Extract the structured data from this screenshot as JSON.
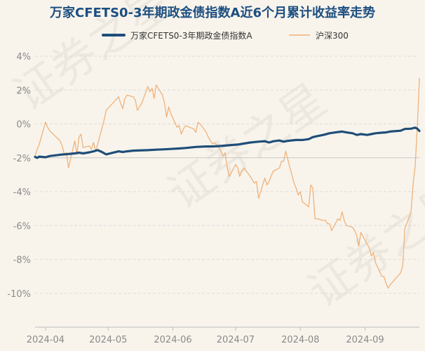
{
  "chart_data": {
    "type": "line",
    "title": "万家CFETS0-3年期政金债指数A近6个月累计收益率走势",
    "x_ticks": [
      "2024-04",
      "2024-05",
      "2024-06",
      "2024-07",
      "2024-08",
      "2024-09"
    ],
    "y_ticks": [
      "4%",
      "2%",
      "0%",
      "-2%",
      "-4%",
      "-6%",
      "-8%",
      "-10%"
    ],
    "y_tick_values": [
      4,
      2,
      0,
      -2,
      -4,
      -6,
      -8,
      -10
    ],
    "ylim": [
      -12,
      4
    ],
    "date_range": [
      "2024-03-27",
      "2024-09-27"
    ],
    "grid": "horizontal dashed",
    "legend_position": "top",
    "watermark": "证券之星",
    "series": [
      {
        "name": "万家CFETS0-3年期政金债指数A",
        "color": "#1f4e79",
        "points": [
          [
            "2024-03-27",
            -1.95
          ],
          [
            "2024-03-28",
            -2.0
          ],
          [
            "2024-03-29",
            -1.93
          ],
          [
            "2024-04-01",
            -1.97
          ],
          [
            "2024-04-03",
            -1.9
          ],
          [
            "2024-04-08",
            -1.82
          ],
          [
            "2024-04-10",
            -1.8
          ],
          [
            "2024-04-12",
            -1.78
          ],
          [
            "2024-04-15",
            -1.74
          ],
          [
            "2024-04-17",
            -1.7
          ],
          [
            "2024-04-19",
            -1.74
          ],
          [
            "2024-04-22",
            -1.68
          ],
          [
            "2024-04-24",
            -1.62
          ],
          [
            "2024-04-26",
            -1.55
          ],
          [
            "2024-04-28",
            -1.66
          ],
          [
            "2024-04-30",
            -1.8
          ],
          [
            "2024-05-06",
            -1.62
          ],
          [
            "2024-05-08",
            -1.66
          ],
          [
            "2024-05-10",
            -1.62
          ],
          [
            "2024-05-13",
            -1.58
          ],
          [
            "2024-05-15",
            -1.57
          ],
          [
            "2024-05-20",
            -1.55
          ],
          [
            "2024-05-24",
            -1.52
          ],
          [
            "2024-05-28",
            -1.5
          ],
          [
            "2024-05-31",
            -1.48
          ],
          [
            "2024-06-04",
            -1.45
          ],
          [
            "2024-06-07",
            -1.42
          ],
          [
            "2024-06-12",
            -1.36
          ],
          [
            "2024-06-17",
            -1.33
          ],
          [
            "2024-06-20",
            -1.33
          ],
          [
            "2024-06-24",
            -1.3
          ],
          [
            "2024-06-28",
            -1.26
          ],
          [
            "2024-07-02",
            -1.22
          ],
          [
            "2024-07-05",
            -1.16
          ],
          [
            "2024-07-08",
            -1.1
          ],
          [
            "2024-07-12",
            -1.05
          ],
          [
            "2024-07-15",
            -1.02
          ],
          [
            "2024-07-17",
            -1.1
          ],
          [
            "2024-07-19",
            -1.03
          ],
          [
            "2024-07-22",
            -0.98
          ],
          [
            "2024-07-24",
            -1.05
          ],
          [
            "2024-07-26",
            -1.0
          ],
          [
            "2024-07-30",
            -0.95
          ],
          [
            "2024-08-02",
            -0.95
          ],
          [
            "2024-08-05",
            -0.9
          ],
          [
            "2024-08-07",
            -0.78
          ],
          [
            "2024-08-09",
            -0.72
          ],
          [
            "2024-08-12",
            -0.65
          ],
          [
            "2024-08-15",
            -0.55
          ],
          [
            "2024-08-19",
            -0.48
          ],
          [
            "2024-08-21",
            -0.45
          ],
          [
            "2024-08-23",
            -0.5
          ],
          [
            "2024-08-26",
            -0.55
          ],
          [
            "2024-08-28",
            -0.65
          ],
          [
            "2024-08-30",
            -0.6
          ],
          [
            "2024-09-02",
            -0.65
          ],
          [
            "2024-09-04",
            -0.6
          ],
          [
            "2024-09-06",
            -0.55
          ],
          [
            "2024-09-09",
            -0.52
          ],
          [
            "2024-09-11",
            -0.5
          ],
          [
            "2024-09-13",
            -0.45
          ],
          [
            "2024-09-18",
            -0.4
          ],
          [
            "2024-09-20",
            -0.3
          ],
          [
            "2024-09-23",
            -0.28
          ],
          [
            "2024-09-24",
            -0.25
          ],
          [
            "2024-09-25",
            -0.22
          ],
          [
            "2024-09-26",
            -0.28
          ],
          [
            "2024-09-27",
            -0.42
          ]
        ]
      },
      {
        "name": "沪深300",
        "color": "#f0b27a",
        "points": [
          [
            "2024-03-27",
            -1.9
          ],
          [
            "2024-03-28",
            -1.5
          ],
          [
            "2024-03-29",
            -1.2
          ],
          [
            "2024-04-01",
            0.1
          ],
          [
            "2024-04-02",
            -0.2
          ],
          [
            "2024-04-03",
            -0.4
          ],
          [
            "2024-04-08",
            -1.0
          ],
          [
            "2024-04-09",
            -1.3
          ],
          [
            "2024-04-10",
            -1.8
          ],
          [
            "2024-04-11",
            -1.7
          ],
          [
            "2024-04-12",
            -2.6
          ],
          [
            "2024-04-15",
            -1.0
          ],
          [
            "2024-04-16",
            -1.8
          ],
          [
            "2024-04-17",
            -0.8
          ],
          [
            "2024-04-18",
            -0.6
          ],
          [
            "2024-04-19",
            -1.4
          ],
          [
            "2024-04-22",
            -1.3
          ],
          [
            "2024-04-23",
            -1.5
          ],
          [
            "2024-04-24",
            -1.1
          ],
          [
            "2024-04-25",
            -1.6
          ],
          [
            "2024-04-26",
            -1.2
          ],
          [
            "2024-04-29",
            0.2
          ],
          [
            "2024-04-30",
            0.8
          ],
          [
            "2024-05-06",
            1.6
          ],
          [
            "2024-05-07",
            1.2
          ],
          [
            "2024-05-08",
            0.9
          ],
          [
            "2024-05-09",
            1.5
          ],
          [
            "2024-05-10",
            1.7
          ],
          [
            "2024-05-13",
            1.6
          ],
          [
            "2024-05-14",
            1.4
          ],
          [
            "2024-05-15",
            0.8
          ],
          [
            "2024-05-16",
            1.0
          ],
          [
            "2024-05-17",
            1.2
          ],
          [
            "2024-05-20",
            2.2
          ],
          [
            "2024-05-21",
            1.9
          ],
          [
            "2024-05-22",
            2.1
          ],
          [
            "2024-05-23",
            1.5
          ],
          [
            "2024-05-24",
            2.3
          ],
          [
            "2024-05-27",
            1.7
          ],
          [
            "2024-05-28",
            1.2
          ],
          [
            "2024-05-29",
            0.4
          ],
          [
            "2024-05-30",
            1.0
          ],
          [
            "2024-05-31",
            0.6
          ],
          [
            "2024-06-03",
            -0.2
          ],
          [
            "2024-06-04",
            -0.1
          ],
          [
            "2024-06-05",
            -0.6
          ],
          [
            "2024-06-06",
            -0.3
          ],
          [
            "2024-06-07",
            -0.1
          ],
          [
            "2024-06-11",
            -0.3
          ],
          [
            "2024-06-12",
            -0.5
          ],
          [
            "2024-06-13",
            0.1
          ],
          [
            "2024-06-14",
            0.0
          ],
          [
            "2024-06-17",
            -0.5
          ],
          [
            "2024-06-18",
            -0.8
          ],
          [
            "2024-06-19",
            -1.0
          ],
          [
            "2024-06-20",
            -1.2
          ],
          [
            "2024-06-21",
            -1.1
          ],
          [
            "2024-06-24",
            -1.6
          ],
          [
            "2024-06-25",
            -1.9
          ],
          [
            "2024-06-26",
            -1.7
          ],
          [
            "2024-06-27",
            -2.6
          ],
          [
            "2024-06-28",
            -3.1
          ],
          [
            "2024-07-01",
            -2.4
          ],
          [
            "2024-07-02",
            -2.6
          ],
          [
            "2024-07-03",
            -3.1
          ],
          [
            "2024-07-04",
            -2.8
          ],
          [
            "2024-07-05",
            -2.6
          ],
          [
            "2024-07-08",
            -3.1
          ],
          [
            "2024-07-09",
            -3.3
          ],
          [
            "2024-07-10",
            -3.5
          ],
          [
            "2024-07-11",
            -3.4
          ],
          [
            "2024-07-12",
            -4.4
          ],
          [
            "2024-07-15",
            -3.2
          ],
          [
            "2024-07-16",
            -3.6
          ],
          [
            "2024-07-17",
            -3.4
          ],
          [
            "2024-07-18",
            -3.1
          ],
          [
            "2024-07-19",
            -2.8
          ],
          [
            "2024-07-22",
            -2.6
          ],
          [
            "2024-07-23",
            -2.2
          ],
          [
            "2024-07-24",
            -2.2
          ],
          [
            "2024-07-25",
            -1.6
          ],
          [
            "2024-07-26",
            -2.1
          ],
          [
            "2024-07-29",
            -3.5
          ],
          [
            "2024-07-30",
            -3.8
          ],
          [
            "2024-07-31",
            -4.2
          ],
          [
            "2024-08-01",
            -4.0
          ],
          [
            "2024-08-02",
            -4.6
          ],
          [
            "2024-08-05",
            -4.9
          ],
          [
            "2024-08-06",
            -3.6
          ],
          [
            "2024-08-07",
            -3.8
          ],
          [
            "2024-08-08",
            -5.6
          ],
          [
            "2024-08-09",
            -5.6
          ],
          [
            "2024-08-12",
            -5.7
          ],
          [
            "2024-08-13",
            -5.7
          ],
          [
            "2024-08-14",
            -5.9
          ],
          [
            "2024-08-15",
            -5.9
          ],
          [
            "2024-08-16",
            -6.3
          ],
          [
            "2024-08-19",
            -5.6
          ],
          [
            "2024-08-20",
            -5.7
          ],
          [
            "2024-08-21",
            -5.2
          ],
          [
            "2024-08-22",
            -5.7
          ],
          [
            "2024-08-23",
            -6.0
          ],
          [
            "2024-08-26",
            -6.1
          ],
          [
            "2024-08-27",
            -6.3
          ],
          [
            "2024-08-28",
            -6.6
          ],
          [
            "2024-08-29",
            -7.2
          ],
          [
            "2024-08-30",
            -6.4
          ],
          [
            "2024-09-02",
            -7.1
          ],
          [
            "2024-09-03",
            -7.3
          ],
          [
            "2024-09-04",
            -7.8
          ],
          [
            "2024-09-05",
            -7.6
          ],
          [
            "2024-09-06",
            -8.2
          ],
          [
            "2024-09-09",
            -9.0
          ],
          [
            "2024-09-10",
            -9.0
          ],
          [
            "2024-09-11",
            -9.4
          ],
          [
            "2024-09-12",
            -9.7
          ],
          [
            "2024-09-13",
            -9.5
          ],
          [
            "2024-09-18",
            -8.8
          ],
          [
            "2024-09-19",
            -8.4
          ],
          [
            "2024-09-20",
            -6.2
          ],
          [
            "2024-09-23",
            -5.2
          ],
          [
            "2024-09-24",
            -3.5
          ],
          [
            "2024-09-25",
            -2.5
          ],
          [
            "2024-09-26",
            -0.2
          ],
          [
            "2024-09-27",
            2.7
          ]
        ]
      }
    ]
  }
}
